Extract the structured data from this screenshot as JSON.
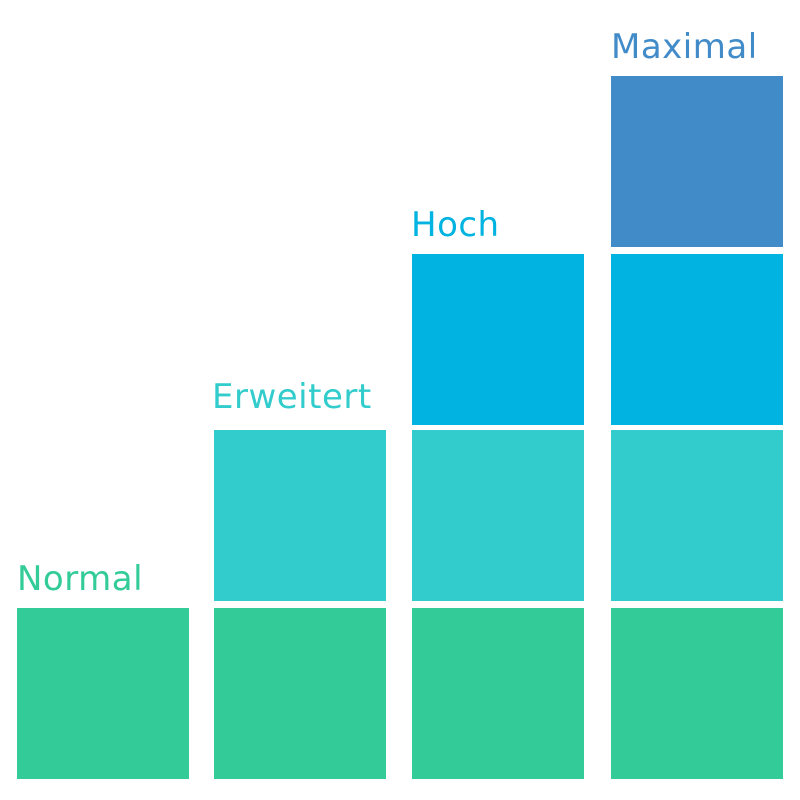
{
  "colors": {
    "tier1": "#33cc99",
    "tier2": "#33cccc",
    "tier3": "#00b3e0",
    "tier4": "#428bc9"
  },
  "levels": [
    {
      "label": "Normal",
      "blocks": 1,
      "label_color": "#33cc99"
    },
    {
      "label": "Erweitert",
      "blocks": 2,
      "label_color": "#33cccc"
    },
    {
      "label": "Hoch",
      "blocks": 3,
      "label_color": "#00b3e0"
    },
    {
      "label": "Maximal",
      "blocks": 4,
      "label_color": "#428bc9"
    }
  ]
}
